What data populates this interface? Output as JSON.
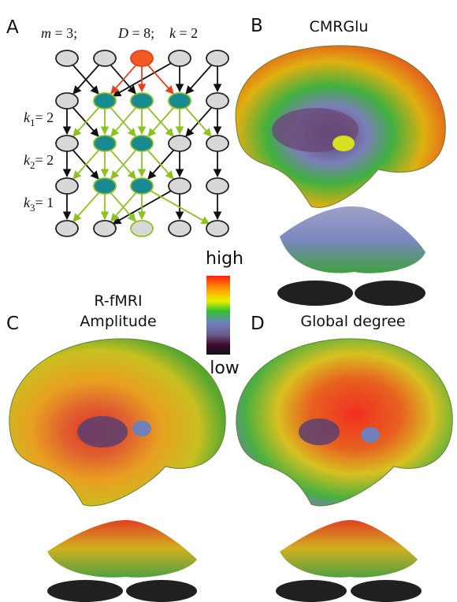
{
  "panels": {
    "a": {
      "label": "A",
      "params": {
        "m": {
          "var": "m",
          "rest": " = 3;"
        },
        "d": {
          "var": "D",
          "rest": " = 8;"
        },
        "k": {
          "var": "k",
          "rest": " = 2"
        }
      },
      "levels": [
        {
          "var": "k",
          "sub": "1",
          "rest": "= 2"
        },
        {
          "var": "k",
          "sub": "2",
          "rest": "= 2"
        },
        {
          "var": "k",
          "sub": "3",
          "rest": "= 1"
        }
      ]
    },
    "b": {
      "label": "B",
      "title": "CMRGlu"
    },
    "c": {
      "label": "C",
      "title_lines": [
        "R-fMRI",
        "Amplitude"
      ]
    },
    "d": {
      "label": "D",
      "title": "Global degree"
    }
  },
  "colorbar": {
    "high": "high",
    "low": "low"
  }
}
